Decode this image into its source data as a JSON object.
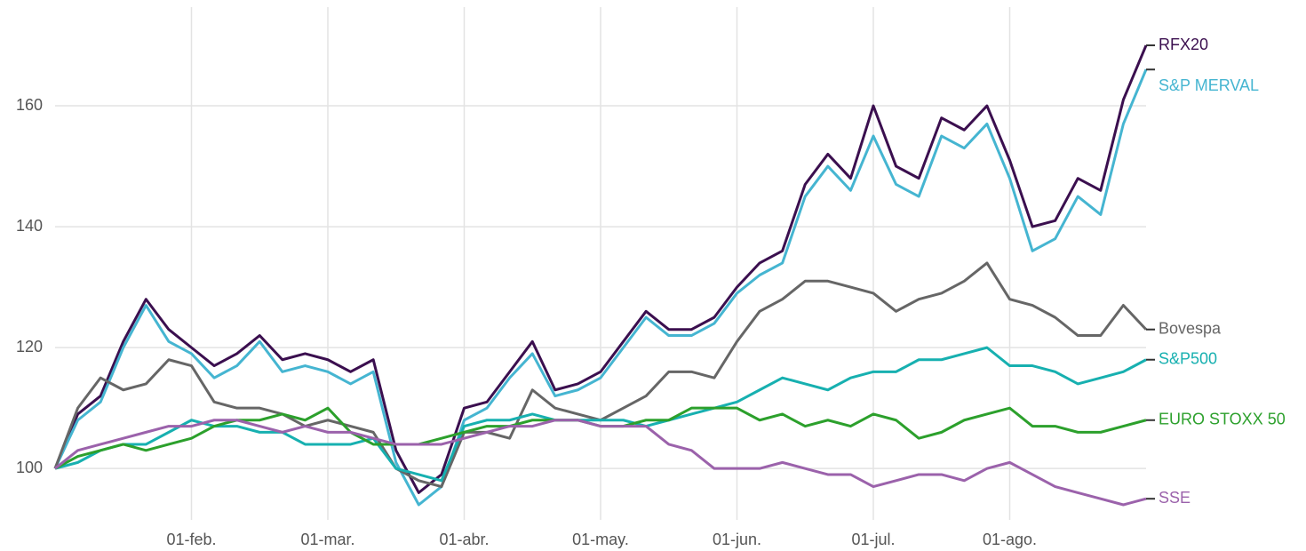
{
  "chart_data": {
    "type": "line",
    "categories": [
      null,
      null,
      null,
      null,
      null,
      null,
      "01-feb.",
      null,
      null,
      null,
      null,
      null,
      "01-mar.",
      null,
      null,
      null,
      null,
      null,
      "01-abr.",
      null,
      null,
      null,
      null,
      null,
      "01-may.",
      null,
      null,
      null,
      null,
      null,
      "01-jun.",
      null,
      null,
      null,
      null,
      null,
      "01-jul.",
      null,
      null,
      null,
      null,
      null,
      "01-ago.",
      null,
      null,
      null,
      null,
      null,
      null
    ],
    "series": [
      {
        "name": "RFX20",
        "color": "#3b0f4f",
        "values": [
          100,
          109,
          112,
          121,
          128,
          123,
          120,
          117,
          119,
          122,
          118,
          119,
          118,
          116,
          118,
          103,
          96,
          99,
          110,
          111,
          116,
          121,
          113,
          114,
          116,
          121,
          126,
          123,
          123,
          125,
          130,
          134,
          136,
          147,
          152,
          148,
          160,
          150,
          148,
          158,
          156,
          160,
          151,
          140,
          141,
          148,
          146,
          161,
          170
        ]
      },
      {
        "name": "S&P MERVAL",
        "color": "#45b5d1",
        "values": [
          100,
          108,
          111,
          120,
          127,
          121,
          119,
          115,
          117,
          121,
          116,
          117,
          116,
          114,
          116,
          101,
          94,
          97,
          108,
          110,
          115,
          119,
          112,
          113,
          115,
          120,
          125,
          122,
          122,
          124,
          129,
          132,
          134,
          145,
          150,
          146,
          155,
          147,
          145,
          155,
          153,
          157,
          148,
          136,
          138,
          145,
          142,
          157,
          166
        ]
      },
      {
        "name": "Bovespa",
        "color": "#666666",
        "values": [
          100,
          110,
          115,
          113,
          114,
          118,
          117,
          111,
          110,
          110,
          109,
          107,
          108,
          107,
          106,
          100,
          98,
          97,
          106,
          106,
          105,
          113,
          110,
          109,
          108,
          110,
          112,
          116,
          116,
          115,
          121,
          126,
          128,
          131,
          131,
          130,
          129,
          126,
          128,
          129,
          131,
          134,
          128,
          127,
          125,
          122,
          122,
          127,
          123
        ]
      },
      {
        "name": "S&P500",
        "color": "#17b0b0",
        "values": [
          100,
          101,
          103,
          104,
          104,
          106,
          108,
          107,
          107,
          106,
          106,
          104,
          104,
          104,
          105,
          100,
          99,
          98,
          107,
          108,
          108,
          109,
          108,
          108,
          108,
          108,
          107,
          108,
          109,
          110,
          111,
          113,
          115,
          114,
          113,
          115,
          116,
          116,
          118,
          118,
          119,
          120,
          117,
          117,
          116,
          114,
          115,
          116,
          118
        ]
      },
      {
        "name": "EURO STOXX 50",
        "color": "#2ca02c",
        "values": [
          100,
          102,
          103,
          104,
          103,
          104,
          105,
          107,
          108,
          108,
          109,
          108,
          110,
          106,
          104,
          104,
          104,
          105,
          106,
          107,
          107,
          108,
          108,
          108,
          107,
          107,
          108,
          108,
          110,
          110,
          110,
          108,
          109,
          107,
          108,
          107,
          109,
          108,
          105,
          106,
          108,
          109,
          110,
          107,
          107,
          106,
          106,
          107,
          108
        ]
      },
      {
        "name": "SSE",
        "color": "#9b62ab",
        "values": [
          100,
          103,
          104,
          105,
          106,
          107,
          107,
          108,
          108,
          107,
          106,
          107,
          106,
          106,
          105,
          104,
          104,
          104,
          105,
          106,
          107,
          107,
          108,
          108,
          107,
          107,
          107,
          104,
          103,
          100,
          100,
          100,
          101,
          100,
          99,
          99,
          97,
          98,
          99,
          99,
          98,
          100,
          101,
          99,
          97,
          96,
          95,
          94,
          95
        ]
      }
    ],
    "ylim": [
      91.5,
      177.5
    ],
    "yticks": [
      100,
      120,
      140,
      160
    ],
    "grid": true
  }
}
